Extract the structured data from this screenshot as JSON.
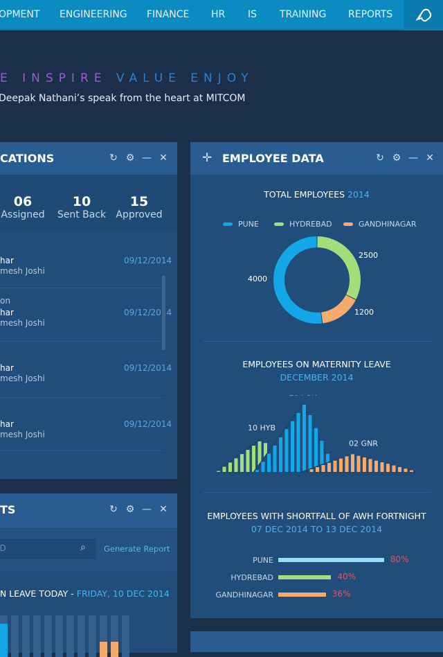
{
  "nav": {
    "items": [
      "OPMENT",
      "ENGINEERING",
      "FINANCE",
      "HR",
      "IS",
      "TRAINING",
      "REPORTS"
    ],
    "logo_icon": "brand-logo-icon"
  },
  "hero": {
    "motto_parts": [
      {
        "text": "E",
        "color": "#a05ad0"
      },
      {
        "text": "INSPIRE",
        "color": "#a05ad0"
      },
      {
        "text": "VALUE",
        "color": "#2f7fd0"
      },
      {
        "text": "ENJOY",
        "color": "#2f7fd0"
      }
    ],
    "subtitle": "Deepak Nathani’s speak from the heart at MITCOM"
  },
  "applications": {
    "title": "CATIONS",
    "stats": [
      {
        "value": "06",
        "label": "Assigned"
      },
      {
        "value": "10",
        "label": "Sent Back"
      },
      {
        "value": "15",
        "label": "Approved"
      }
    ],
    "items": [
      {
        "pre": "",
        "name": "har",
        "by": "mesh Joshi",
        "date": "09/12/2014"
      },
      {
        "pre": "on",
        "name": "har",
        "by": "mesh Joshi",
        "date": "09/12/2014"
      },
      {
        "pre": "",
        "name": "har",
        "by": "mesh Joshi",
        "date": "09/12/2014"
      },
      {
        "pre": "",
        "name": "har",
        "by": "mesh Joshi",
        "date": "09/12/2014"
      }
    ]
  },
  "reports": {
    "title": "TS",
    "search_placeholder": "ID",
    "generate_label": "Generate Report",
    "leave_title": "ON LEAVE TODAY - ",
    "leave_date": "FRIDAY, 10 DEC 2014"
  },
  "employee_data": {
    "title": "EMPLOYEE DATA"
  },
  "chart_data": [
    {
      "type": "pie",
      "title": "TOTAL EMPLOYEES",
      "title_year": "2014",
      "legend": [
        "PUNE",
        "HYDREBAD",
        "GANDHINAGAR"
      ],
      "values": [
        4000,
        2500,
        1200
      ],
      "labels": [
        "4000",
        "2500",
        "1200"
      ],
      "colors": [
        "#12a8e8",
        "#a5dd7d",
        "#f5ab6e"
      ],
      "legend_placement": "top"
    },
    {
      "type": "area",
      "title": "EMPLOYEES ON MATERNITY LEAVE",
      "subtitle": "DECEMBER 2014",
      "series": [
        {
          "name": "HYB",
          "value": 10,
          "label": "10 HYB",
          "color": "#a5dd7d"
        },
        {
          "name": "PUN",
          "value": 28,
          "label": "28 PUN",
          "color": "#12a8e8"
        },
        {
          "name": "GNR",
          "value": 2,
          "label": "02 GNR",
          "color": "#f5ab6e"
        }
      ]
    },
    {
      "type": "bar",
      "title": "EMPLOYEES WITH SHORTFALL OF AWH FORTNIGHT",
      "subtitle": "07 DEC 2014 TO 13 DEC 2014",
      "categories": [
        "PUNE",
        "HYDREBAD",
        "GANDHINAGAR"
      ],
      "values": [
        80,
        40,
        36
      ],
      "value_labels": [
        "80%",
        "40%",
        "36%"
      ],
      "colors": [
        "#9fdcf8",
        "#a5dd7d",
        "#f5ab6e"
      ],
      "label_color": "#e0565e"
    }
  ]
}
